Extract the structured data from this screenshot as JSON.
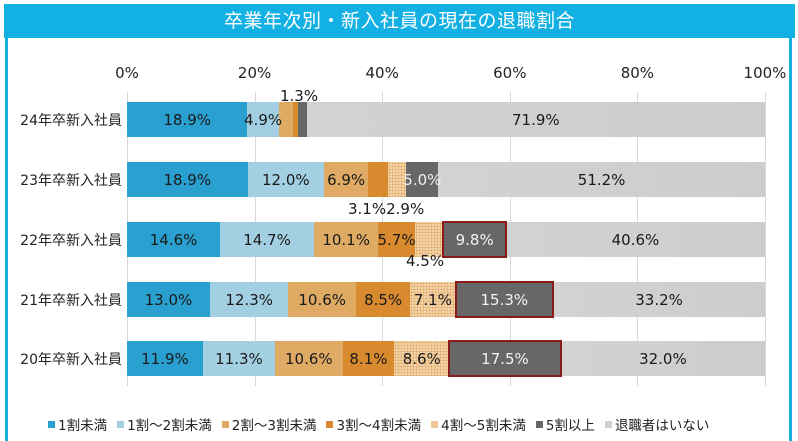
{
  "header": {
    "title": "卒業年次別・新入社員の現在の退職割合"
  },
  "axis": {
    "ticks": [
      "0%",
      "20%",
      "40%",
      "60%",
      "80%",
      "100%"
    ]
  },
  "legend": [
    {
      "label": "1割未満",
      "color": "#2aa0d0"
    },
    {
      "label": "1割～2割未満",
      "color": "#a3cfe2"
    },
    {
      "label": "2割～3割未満",
      "color": "#deaa64"
    },
    {
      "label": "3割～4割未満",
      "color": "#d98a2e"
    },
    {
      "label": "4割～5割未満",
      "color": "#f0c898"
    },
    {
      "label": "5割以上",
      "color": "#676767"
    },
    {
      "label": "退職者はいない",
      "color": "#cfcfcf"
    }
  ],
  "rows": [
    {
      "label": "24年卒新入社員",
      "values": [
        18.9,
        4.9,
        2.3,
        0.8,
        0.0,
        1.3,
        71.9
      ],
      "labels": [
        "18.9%",
        "4.9%",
        "",
        "",
        "",
        "",
        "71.9%"
      ],
      "ext": [
        "1.3%"
      ]
    },
    {
      "label": "23年卒新入社員",
      "values": [
        18.9,
        12.0,
        6.9,
        3.1,
        2.9,
        5.0,
        51.2
      ],
      "labels": [
        "18.9%",
        "12.0%",
        "6.9%",
        "",
        "",
        "5.0%",
        "51.2%"
      ],
      "ext": [
        "3.1%2.9%"
      ]
    },
    {
      "label": "22年卒新入社員",
      "values": [
        14.6,
        14.7,
        10.1,
        5.7,
        4.5,
        9.8,
        40.6
      ],
      "labels": [
        "14.6%",
        "14.7%",
        "10.1%",
        "5.7%",
        "",
        "9.8%",
        "40.6%"
      ],
      "ext": [
        "4.5%"
      ]
    },
    {
      "label": "21年卒新入社員",
      "values": [
        13.0,
        12.3,
        10.6,
        8.5,
        7.1,
        15.3,
        33.2
      ],
      "labels": [
        "13.0%",
        "12.3%",
        "10.6%",
        "8.5%",
        "7.1%",
        "15.3%",
        "33.2%"
      ],
      "ext": []
    },
    {
      "label": "20年卒新入社員",
      "values": [
        11.9,
        11.3,
        10.6,
        8.1,
        8.6,
        17.5,
        32.0
      ],
      "labels": [
        "11.9%",
        "11.3%",
        "10.6%",
        "8.1%",
        "8.6%",
        "17.5%",
        "32.0%"
      ],
      "ext": []
    }
  ],
  "chart_data": {
    "type": "bar",
    "orientation": "horizontal",
    "stacked": true,
    "percent": true,
    "title": "卒業年次別・新入社員の現在の退職割合",
    "categories": [
      "24年卒新入社員",
      "23年卒新入社員",
      "22年卒新入社員",
      "21年卒新入社員",
      "20年卒新入社員"
    ],
    "series": [
      {
        "name": "1割未満",
        "values": [
          18.9,
          18.9,
          14.6,
          13.0,
          11.9
        ]
      },
      {
        "name": "1割～2割未満",
        "values": [
          4.9,
          12.0,
          14.7,
          12.3,
          11.3
        ]
      },
      {
        "name": "2割～3割未満",
        "values": [
          2.3,
          6.9,
          10.1,
          10.6,
          10.6
        ]
      },
      {
        "name": "3割～4割未満",
        "values": [
          0.8,
          3.1,
          5.7,
          8.5,
          8.1
        ]
      },
      {
        "name": "4割～5割未満",
        "values": [
          0.0,
          2.9,
          4.5,
          7.1,
          8.6
        ]
      },
      {
        "name": "5割以上",
        "values": [
          1.3,
          5.0,
          9.8,
          15.3,
          17.5
        ]
      },
      {
        "name": "退職者はいない",
        "values": [
          71.9,
          51.2,
          40.6,
          33.2,
          32.0
        ]
      }
    ],
    "xlabel": "",
    "ylabel": "",
    "xlim": [
      0,
      100
    ],
    "xticks": [
      "0%",
      "20%",
      "40%",
      "60%",
      "80%",
      "100%"
    ],
    "grid": true,
    "legend_position": "bottom",
    "annotations": [
      "5割以上 segments for 22年卒, 21年卒, 20年卒 highlighted with dark red border"
    ]
  }
}
